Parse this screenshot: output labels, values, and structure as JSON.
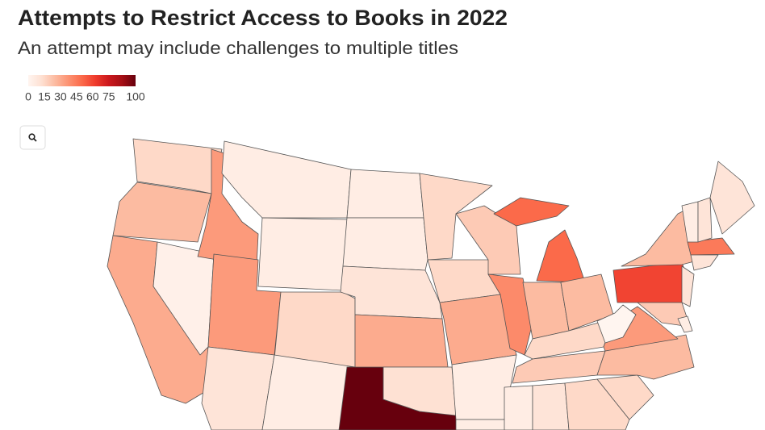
{
  "chart_data": {
    "type": "choropleth",
    "title": "Attempts to Restrict Access to Books in 2022",
    "subtitle": "An attempt may include challenges to multiple titles",
    "categories": [
      null,
      null,
      null,
      null,
      null,
      null,
      null,
      null,
      null,
      null,
      null,
      null,
      null,
      null,
      null,
      null,
      null,
      null,
      null,
      null,
      null,
      null,
      null,
      null,
      null,
      null,
      null,
      null,
      null,
      null,
      null,
      null,
      null,
      null,
      null,
      null,
      null,
      null,
      null,
      null,
      null,
      null,
      null,
      null,
      null,
      null,
      null
    ],
    "values": [
      15,
      25,
      30,
      3,
      35,
      5,
      5,
      35,
      15,
      10,
      5,
      100,
      5,
      5,
      10,
      30,
      12,
      15,
      15,
      30,
      5,
      5,
      20,
      40,
      50,
      50,
      25,
      25,
      15,
      20,
      5,
      10,
      15,
      15,
      25,
      35,
      0,
      60,
      25,
      10,
      20,
      45,
      10,
      5,
      10,
      10,
      5
    ],
    "colorscale": [
      "#fff5f0",
      "#fee0d2",
      "#fcbba1",
      "#fc9272",
      "#fb6a4a",
      "#ef3b2c",
      "#cb181d",
      "#a50f15",
      "#67000d"
    ],
    "clim": [
      0,
      100
    ],
    "cticks": [
      0,
      15,
      30,
      45,
      60,
      75,
      100
    ]
  }
}
